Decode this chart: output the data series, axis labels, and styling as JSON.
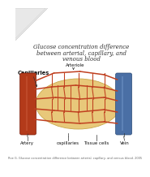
{
  "title_line1": "Glucose concentration difference",
  "title_line2": "between arterial, capillary, and",
  "title_line3": "venous blood",
  "label_capillaries": "Capillaries",
  "label_arteriole": "Arteriole",
  "label_artery": "Artery",
  "label_capillaries2": "capillaries",
  "label_tissue": "Tissue cells",
  "label_vein": "Vein",
  "footer": "Roe G. Glucose concentration difference between arterial, capillary, and venous blood. 2005",
  "bg_color": "#ffffff",
  "tissue_color": "#e8c87a",
  "tissue_edge": "#c9a84c",
  "artery_color": "#b33a1a",
  "artery_dark": "#7a1a08",
  "vein_color": "#4a6fa5",
  "vein_dark": "#2a4a75",
  "cap_color": "#c04020",
  "title_fontsize": 5.0,
  "label_fontsize": 4.0,
  "cap_label_fontsize": 4.8,
  "footer_fontsize": 2.5,
  "corner_line_color": "#cccccc"
}
